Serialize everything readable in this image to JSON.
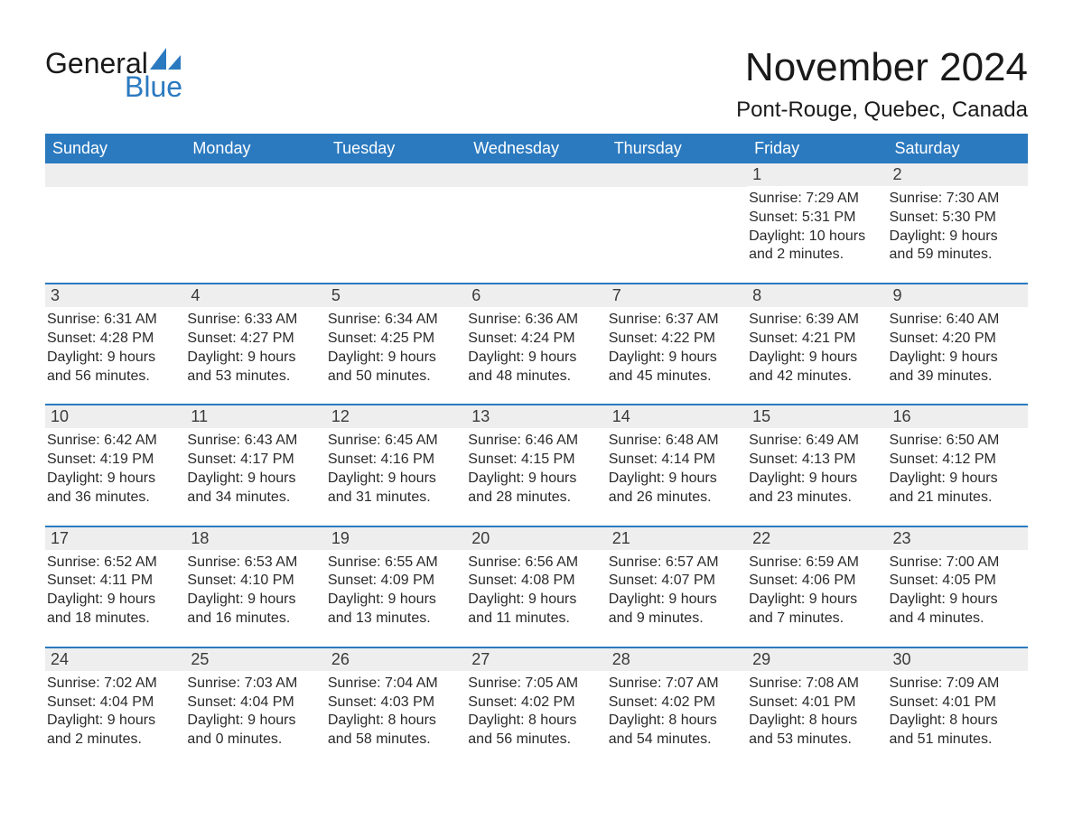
{
  "logo": {
    "word1": "General",
    "word2": "Blue",
    "shape_color": "#2b7ac0"
  },
  "title": "November 2024",
  "location": "Pont-Rouge, Quebec, Canada",
  "colors": {
    "header_bg": "#2b7ac0",
    "header_text": "#ffffff",
    "row_divider": "#2b7ac0",
    "daynum_bg": "#eeeeee",
    "text": "#2a2a2a",
    "page_bg": "#ffffff"
  },
  "typography": {
    "title_fontsize": 44,
    "location_fontsize": 24,
    "dow_fontsize": 18,
    "body_fontsize": 16
  },
  "days_of_week": [
    "Sunday",
    "Monday",
    "Tuesday",
    "Wednesday",
    "Thursday",
    "Friday",
    "Saturday"
  ],
  "weeks": [
    [
      null,
      null,
      null,
      null,
      null,
      {
        "n": "1",
        "sunrise": "7:29 AM",
        "sunset": "5:31 PM",
        "daylight": "10 hours and 2 minutes."
      },
      {
        "n": "2",
        "sunrise": "7:30 AM",
        "sunset": "5:30 PM",
        "daylight": "9 hours and 59 minutes."
      }
    ],
    [
      {
        "n": "3",
        "sunrise": "6:31 AM",
        "sunset": "4:28 PM",
        "daylight": "9 hours and 56 minutes."
      },
      {
        "n": "4",
        "sunrise": "6:33 AM",
        "sunset": "4:27 PM",
        "daylight": "9 hours and 53 minutes."
      },
      {
        "n": "5",
        "sunrise": "6:34 AM",
        "sunset": "4:25 PM",
        "daylight": "9 hours and 50 minutes."
      },
      {
        "n": "6",
        "sunrise": "6:36 AM",
        "sunset": "4:24 PM",
        "daylight": "9 hours and 48 minutes."
      },
      {
        "n": "7",
        "sunrise": "6:37 AM",
        "sunset": "4:22 PM",
        "daylight": "9 hours and 45 minutes."
      },
      {
        "n": "8",
        "sunrise": "6:39 AM",
        "sunset": "4:21 PM",
        "daylight": "9 hours and 42 minutes."
      },
      {
        "n": "9",
        "sunrise": "6:40 AM",
        "sunset": "4:20 PM",
        "daylight": "9 hours and 39 minutes."
      }
    ],
    [
      {
        "n": "10",
        "sunrise": "6:42 AM",
        "sunset": "4:19 PM",
        "daylight": "9 hours and 36 minutes."
      },
      {
        "n": "11",
        "sunrise": "6:43 AM",
        "sunset": "4:17 PM",
        "daylight": "9 hours and 34 minutes."
      },
      {
        "n": "12",
        "sunrise": "6:45 AM",
        "sunset": "4:16 PM",
        "daylight": "9 hours and 31 minutes."
      },
      {
        "n": "13",
        "sunrise": "6:46 AM",
        "sunset": "4:15 PM",
        "daylight": "9 hours and 28 minutes."
      },
      {
        "n": "14",
        "sunrise": "6:48 AM",
        "sunset": "4:14 PM",
        "daylight": "9 hours and 26 minutes."
      },
      {
        "n": "15",
        "sunrise": "6:49 AM",
        "sunset": "4:13 PM",
        "daylight": "9 hours and 23 minutes."
      },
      {
        "n": "16",
        "sunrise": "6:50 AM",
        "sunset": "4:12 PM",
        "daylight": "9 hours and 21 minutes."
      }
    ],
    [
      {
        "n": "17",
        "sunrise": "6:52 AM",
        "sunset": "4:11 PM",
        "daylight": "9 hours and 18 minutes."
      },
      {
        "n": "18",
        "sunrise": "6:53 AM",
        "sunset": "4:10 PM",
        "daylight": "9 hours and 16 minutes."
      },
      {
        "n": "19",
        "sunrise": "6:55 AM",
        "sunset": "4:09 PM",
        "daylight": "9 hours and 13 minutes."
      },
      {
        "n": "20",
        "sunrise": "6:56 AM",
        "sunset": "4:08 PM",
        "daylight": "9 hours and 11 minutes."
      },
      {
        "n": "21",
        "sunrise": "6:57 AM",
        "sunset": "4:07 PM",
        "daylight": "9 hours and 9 minutes."
      },
      {
        "n": "22",
        "sunrise": "6:59 AM",
        "sunset": "4:06 PM",
        "daylight": "9 hours and 7 minutes."
      },
      {
        "n": "23",
        "sunrise": "7:00 AM",
        "sunset": "4:05 PM",
        "daylight": "9 hours and 4 minutes."
      }
    ],
    [
      {
        "n": "24",
        "sunrise": "7:02 AM",
        "sunset": "4:04 PM",
        "daylight": "9 hours and 2 minutes."
      },
      {
        "n": "25",
        "sunrise": "7:03 AM",
        "sunset": "4:04 PM",
        "daylight": "9 hours and 0 minutes."
      },
      {
        "n": "26",
        "sunrise": "7:04 AM",
        "sunset": "4:03 PM",
        "daylight": "8 hours and 58 minutes."
      },
      {
        "n": "27",
        "sunrise": "7:05 AM",
        "sunset": "4:02 PM",
        "daylight": "8 hours and 56 minutes."
      },
      {
        "n": "28",
        "sunrise": "7:07 AM",
        "sunset": "4:02 PM",
        "daylight": "8 hours and 54 minutes."
      },
      {
        "n": "29",
        "sunrise": "7:08 AM",
        "sunset": "4:01 PM",
        "daylight": "8 hours and 53 minutes."
      },
      {
        "n": "30",
        "sunrise": "7:09 AM",
        "sunset": "4:01 PM",
        "daylight": "8 hours and 51 minutes."
      }
    ]
  ],
  "labels": {
    "sunrise": "Sunrise: ",
    "sunset": "Sunset: ",
    "daylight": "Daylight: "
  }
}
